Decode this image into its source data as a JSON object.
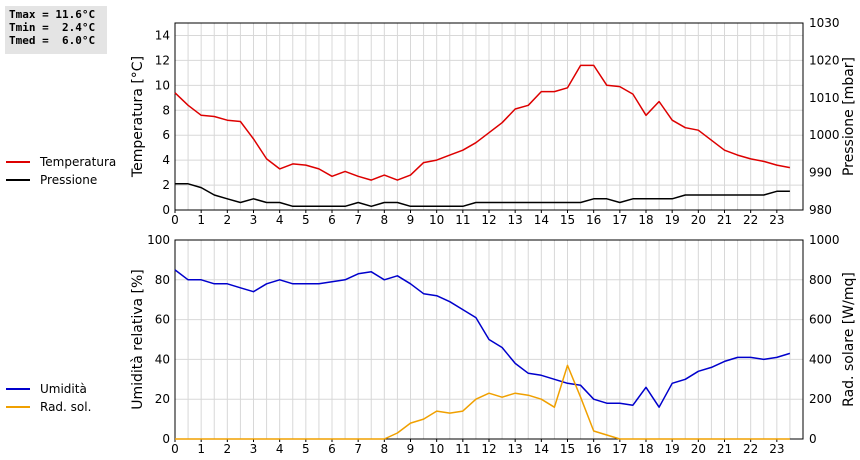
{
  "stats": {
    "tmax": "Tmax = 11.6°C",
    "tmin": "Tmin =  2.4°C",
    "tmed": "Tmed =  6.0°C"
  },
  "chart_data": [
    {
      "type": "line",
      "xlabel": "",
      "ylabel_left": "Temperatura [°C]",
      "ylabel_right": "Pressione [mbar]",
      "xlim": [
        0,
        24
      ],
      "ylim_left": [
        0,
        15
      ],
      "ylim_right": [
        980,
        1030
      ],
      "x_ticks": [
        0,
        1,
        2,
        3,
        4,
        5,
        6,
        7,
        8,
        9,
        10,
        11,
        12,
        13,
        14,
        15,
        16,
        17,
        18,
        19,
        20,
        21,
        22,
        23
      ],
      "y_ticks_left": [
        0,
        2,
        4,
        6,
        8,
        10,
        12,
        14
      ],
      "y_ticks_right": [
        980,
        990,
        1000,
        1010,
        1020,
        1030
      ],
      "grid": true,
      "legend_position": "left",
      "series": [
        {
          "name": "Temperatura",
          "axis": "left",
          "color": "#dd0000",
          "x": [
            0,
            0.5,
            1,
            1.5,
            2,
            2.5,
            3,
            3.5,
            4,
            4.5,
            5,
            5.5,
            6,
            6.5,
            7,
            7.5,
            8,
            8.5,
            9,
            9.5,
            10,
            10.5,
            11,
            11.5,
            12,
            12.5,
            13,
            13.5,
            14,
            14.5,
            15,
            15.5,
            16,
            16.5,
            17,
            17.5,
            18,
            18.5,
            19,
            19.5,
            20,
            20.5,
            21,
            21.5,
            22,
            22.5,
            23,
            23.5
          ],
          "y": [
            9.4,
            8.4,
            7.6,
            7.5,
            7.2,
            7.1,
            5.7,
            4.1,
            3.3,
            3.7,
            3.6,
            3.3,
            2.7,
            3.1,
            2.7,
            2.4,
            2.8,
            2.4,
            2.8,
            3.8,
            4.0,
            4.4,
            4.8,
            5.4,
            6.2,
            7.0,
            8.1,
            8.4,
            9.5,
            9.5,
            9.8,
            11.6,
            11.6,
            10.0,
            9.9,
            9.3,
            7.6,
            8.7,
            7.2,
            6.6,
            6.4,
            5.6,
            4.8,
            4.4,
            4.1,
            3.9,
            3.6,
            3.4
          ]
        },
        {
          "name": "Pressione",
          "axis": "right",
          "color": "#000000",
          "x": [
            0,
            0.5,
            1,
            1.5,
            2,
            2.5,
            3,
            3.5,
            4,
            4.5,
            5,
            5.5,
            6,
            6.5,
            7,
            7.5,
            8,
            8.5,
            9,
            9.5,
            10,
            10.5,
            11,
            11.5,
            12,
            12.5,
            13,
            13.5,
            14,
            14.5,
            15,
            15.5,
            16,
            16.5,
            17,
            17.5,
            18,
            18.5,
            19,
            19.5,
            20,
            20.5,
            21,
            21.5,
            22,
            22.5,
            23,
            23.5
          ],
          "y": [
            987,
            987,
            986,
            984,
            983,
            982,
            983,
            982,
            982,
            981,
            981,
            981,
            981,
            981,
            982,
            981,
            982,
            982,
            981,
            981,
            981,
            981,
            981,
            982,
            982,
            982,
            982,
            982,
            982,
            982,
            982,
            982,
            983,
            983,
            982,
            983,
            983,
            983,
            983,
            984,
            984,
            984,
            984,
            984,
            984,
            984,
            985,
            985
          ]
        }
      ]
    },
    {
      "type": "line",
      "xlabel": "",
      "ylabel_left": "Umidità relativa [%]",
      "ylabel_right": "Rad. solare [W/mq]",
      "xlim": [
        0,
        24
      ],
      "ylim_left": [
        0,
        100
      ],
      "ylim_right": [
        0,
        1000
      ],
      "x_ticks": [
        0,
        1,
        2,
        3,
        4,
        5,
        6,
        7,
        8,
        9,
        10,
        11,
        12,
        13,
        14,
        15,
        16,
        17,
        18,
        19,
        20,
        21,
        22,
        23
      ],
      "y_ticks_left": [
        0,
        20,
        40,
        60,
        80,
        100
      ],
      "y_ticks_right": [
        0,
        200,
        400,
        600,
        800,
        1000
      ],
      "grid": true,
      "legend_position": "left",
      "series": [
        {
          "name": "Umidità",
          "axis": "left",
          "color": "#0000cc",
          "x": [
            0,
            0.5,
            1,
            1.5,
            2,
            2.5,
            3,
            3.5,
            4,
            4.5,
            5,
            5.5,
            6,
            6.5,
            7,
            7.5,
            8,
            8.5,
            9,
            9.5,
            10,
            10.5,
            11,
            11.5,
            12,
            12.5,
            13,
            13.5,
            14,
            14.5,
            15,
            15.5,
            16,
            16.5,
            17,
            17.5,
            18,
            18.5,
            19,
            19.5,
            20,
            20.5,
            21,
            21.5,
            22,
            22.5,
            23,
            23.5
          ],
          "y": [
            85,
            80,
            80,
            78,
            78,
            76,
            74,
            78,
            80,
            78,
            78,
            78,
            79,
            80,
            83,
            84,
            80,
            82,
            78,
            73,
            72,
            69,
            65,
            61,
            50,
            46,
            38,
            33,
            32,
            30,
            28,
            27,
            20,
            18,
            18,
            17,
            26,
            16,
            28,
            30,
            34,
            36,
            39,
            41,
            41,
            40,
            41,
            43
          ]
        },
        {
          "name": "Rad. sol.",
          "axis": "right",
          "color": "#f0a000",
          "x": [
            0,
            0.5,
            1,
            1.5,
            2,
            2.5,
            3,
            3.5,
            4,
            4.5,
            5,
            5.5,
            6,
            6.5,
            7,
            7.5,
            8,
            8.5,
            9,
            9.5,
            10,
            10.5,
            11,
            11.5,
            12,
            12.5,
            13,
            13.5,
            14,
            14.5,
            15,
            15.5,
            16,
            16.5,
            17,
            17.5,
            18,
            18.5,
            19,
            19.5,
            20,
            20.5,
            21,
            21.5,
            22,
            22.5,
            23,
            23.5
          ],
          "y": [
            0,
            0,
            0,
            0,
            0,
            0,
            0,
            0,
            0,
            0,
            0,
            0,
            0,
            0,
            0,
            0,
            0,
            30,
            80,
            100,
            140,
            130,
            140,
            200,
            230,
            210,
            230,
            220,
            200,
            160,
            370,
            210,
            40,
            20,
            0,
            0,
            0,
            0,
            0,
            0,
            0,
            0,
            0,
            0,
            0,
            0,
            0,
            0
          ]
        }
      ]
    }
  ]
}
